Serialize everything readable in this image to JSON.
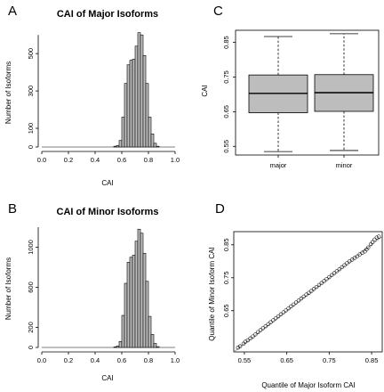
{
  "panel_letters": {
    "A": "A",
    "B": "B",
    "C": "C",
    "D": "D"
  },
  "chart_data": [
    {
      "panel": "A",
      "type": "bar",
      "title": "CAI of Major Isoforms",
      "xlabel": "CAI",
      "ylabel": "Number of Isoforms",
      "xlim": [
        0.0,
        1.0
      ],
      "ylim": [
        0,
        620
      ],
      "xticks": [
        "0.0",
        "0.2",
        "0.4",
        "0.6",
        "0.8",
        "1.0"
      ],
      "yticks": [
        "0",
        "100",
        "300",
        "500"
      ],
      "bin_width": 0.02,
      "bins": [
        {
          "x": 0.54,
          "value": 4
        },
        {
          "x": 0.56,
          "value": 8
        },
        {
          "x": 0.58,
          "value": 35
        },
        {
          "x": 0.6,
          "value": 160
        },
        {
          "x": 0.62,
          "value": 340
        },
        {
          "x": 0.64,
          "value": 440
        },
        {
          "x": 0.66,
          "value": 465
        },
        {
          "x": 0.68,
          "value": 470
        },
        {
          "x": 0.7,
          "value": 540
        },
        {
          "x": 0.72,
          "value": 612
        },
        {
          "x": 0.74,
          "value": 600
        },
        {
          "x": 0.76,
          "value": 490
        },
        {
          "x": 0.78,
          "value": 340
        },
        {
          "x": 0.8,
          "value": 160
        },
        {
          "x": 0.82,
          "value": 70
        },
        {
          "x": 0.84,
          "value": 20
        },
        {
          "x": 0.86,
          "value": 4
        }
      ]
    },
    {
      "panel": "B",
      "type": "bar",
      "title": "CAI of Minor Isoforms",
      "xlabel": "CAI",
      "ylabel": "Number of Isoforms",
      "xlim": [
        0.0,
        1.0
      ],
      "ylim": [
        0,
        1200
      ],
      "xticks": [
        "0.0",
        "0.2",
        "0.4",
        "0.6",
        "0.8",
        "1.0"
      ],
      "yticks": [
        "0",
        "200",
        "600",
        "1000"
      ],
      "bin_width": 0.02,
      "bins": [
        {
          "x": 0.54,
          "value": 5
        },
        {
          "x": 0.56,
          "value": 15
        },
        {
          "x": 0.58,
          "value": 60
        },
        {
          "x": 0.6,
          "value": 320
        },
        {
          "x": 0.62,
          "value": 640
        },
        {
          "x": 0.64,
          "value": 850
        },
        {
          "x": 0.66,
          "value": 900
        },
        {
          "x": 0.68,
          "value": 920
        },
        {
          "x": 0.7,
          "value": 1060
        },
        {
          "x": 0.72,
          "value": 1180
        },
        {
          "x": 0.74,
          "value": 1140
        },
        {
          "x": 0.76,
          "value": 940
        },
        {
          "x": 0.78,
          "value": 660
        },
        {
          "x": 0.8,
          "value": 310
        },
        {
          "x": 0.82,
          "value": 130
        },
        {
          "x": 0.84,
          "value": 40
        },
        {
          "x": 0.86,
          "value": 8
        }
      ]
    },
    {
      "panel": "C",
      "type": "box",
      "ylabel": "CAI",
      "ylim": [
        0.525,
        0.885
      ],
      "yticks": [
        "0.55",
        "0.65",
        "0.75",
        "0.85"
      ],
      "categories": [
        "major",
        "minor"
      ],
      "boxes": [
        {
          "name": "major",
          "min": 0.535,
          "q1": 0.647,
          "median": 0.703,
          "q3": 0.756,
          "max": 0.867
        },
        {
          "name": "minor",
          "min": 0.538,
          "q1": 0.651,
          "median": 0.705,
          "q3": 0.757,
          "max": 0.875
        }
      ]
    },
    {
      "panel": "D",
      "type": "scatter",
      "xlabel": "Quantile of Major Isoform CAI",
      "ylabel": "Quantile of Minor Isoform CAI",
      "xlim": [
        0.525,
        0.875
      ],
      "ylim": [
        0.525,
        0.89
      ],
      "xticks": [
        "0.55",
        "0.65",
        "0.75",
        "0.85"
      ],
      "yticks": [
        "0.65",
        "0.75",
        "0.85"
      ],
      "reference_line": "y = x",
      "points": [
        [
          0.535,
          0.538
        ],
        [
          0.54,
          0.542
        ],
        [
          0.548,
          0.55
        ],
        [
          0.552,
          0.556
        ],
        [
          0.558,
          0.56
        ],
        [
          0.564,
          0.566
        ],
        [
          0.57,
          0.572
        ],
        [
          0.576,
          0.578
        ],
        [
          0.582,
          0.585
        ],
        [
          0.588,
          0.591
        ],
        [
          0.594,
          0.597
        ],
        [
          0.6,
          0.603
        ],
        [
          0.606,
          0.609
        ],
        [
          0.612,
          0.615
        ],
        [
          0.618,
          0.621
        ],
        [
          0.624,
          0.627
        ],
        [
          0.63,
          0.633
        ],
        [
          0.636,
          0.639
        ],
        [
          0.642,
          0.645
        ],
        [
          0.648,
          0.651
        ],
        [
          0.654,
          0.657
        ],
        [
          0.66,
          0.663
        ],
        [
          0.666,
          0.669
        ],
        [
          0.672,
          0.675
        ],
        [
          0.678,
          0.681
        ],
        [
          0.684,
          0.687
        ],
        [
          0.69,
          0.693
        ],
        [
          0.696,
          0.699
        ],
        [
          0.702,
          0.704
        ],
        [
          0.708,
          0.71
        ],
        [
          0.714,
          0.716
        ],
        [
          0.72,
          0.722
        ],
        [
          0.726,
          0.728
        ],
        [
          0.732,
          0.734
        ],
        [
          0.738,
          0.74
        ],
        [
          0.744,
          0.746
        ],
        [
          0.75,
          0.752
        ],
        [
          0.756,
          0.758
        ],
        [
          0.762,
          0.764
        ],
        [
          0.768,
          0.77
        ],
        [
          0.774,
          0.776
        ],
        [
          0.78,
          0.782
        ],
        [
          0.786,
          0.788
        ],
        [
          0.792,
          0.794
        ],
        [
          0.798,
          0.8
        ],
        [
          0.804,
          0.805
        ],
        [
          0.81,
          0.81
        ],
        [
          0.816,
          0.815
        ],
        [
          0.822,
          0.821
        ],
        [
          0.828,
          0.826
        ],
        [
          0.834,
          0.83
        ],
        [
          0.838,
          0.836
        ],
        [
          0.842,
          0.842
        ],
        [
          0.848,
          0.852
        ],
        [
          0.852,
          0.858
        ],
        [
          0.857,
          0.866
        ],
        [
          0.862,
          0.872
        ],
        [
          0.867,
          0.875
        ]
      ]
    }
  ]
}
